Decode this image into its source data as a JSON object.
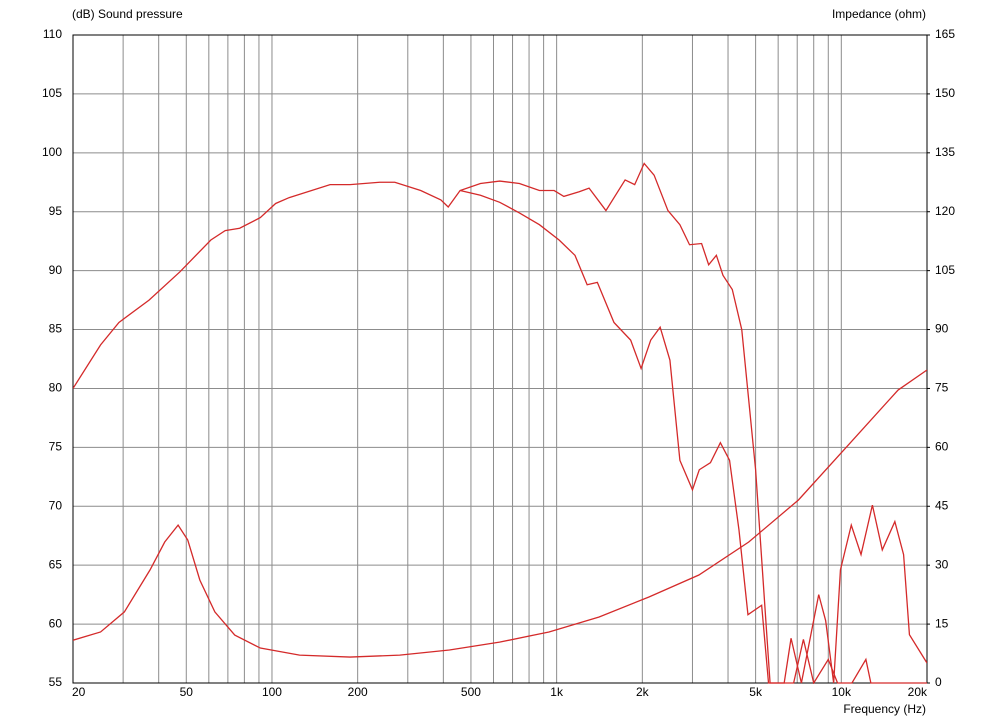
{
  "chart_data": {
    "type": "line",
    "y_label": "(dB)  Sound pressure",
    "y2_label": "Impedance  (ohm)",
    "x_label": "Frequency  (Hz)",
    "x_scale": "log",
    "grid": true,
    "xlim": [
      20,
      20000
    ],
    "xticks": [
      20,
      50,
      100,
      200,
      500,
      {
        "value": 1000,
        "label": "1k"
      },
      {
        "value": 2000,
        "label": "2k"
      },
      {
        "value": 5000,
        "label": "5k"
      },
      {
        "value": 10000,
        "label": "10k"
      },
      {
        "value": 20000,
        "label": "20k"
      }
    ],
    "xminor": [
      30,
      40,
      60,
      70,
      80,
      90,
      300,
      400,
      600,
      700,
      800,
      900,
      3000,
      4000,
      6000,
      7000,
      8000,
      9000
    ],
    "ylim": [
      55,
      110
    ],
    "yticks": [
      55,
      60,
      65,
      70,
      75,
      80,
      85,
      90,
      95,
      100,
      105,
      110
    ],
    "y2lim": [
      0,
      165
    ],
    "y2ticks": [
      0,
      15,
      30,
      45,
      60,
      75,
      90,
      105,
      120,
      135,
      150,
      165
    ],
    "series": [
      {
        "color": "#d42a2a",
        "x": [
          20,
          25,
          29,
          37,
          47.5,
          61,
          68.5,
          77,
          91,
          103,
          115,
          160,
          188,
          239,
          270,
          333,
          392,
          416,
          458,
          540,
          631,
          740,
          870,
          980,
          1060,
          1200,
          1300,
          1490,
          1740,
          1880,
          2030,
          2200,
          2460,
          2710,
          2930,
          3230,
          3420,
          3640,
          3840,
          4140,
          4470,
          5000,
          5620,
          6800,
          7360,
          8000,
          9000,
          9700,
          10900,
          12200,
          12700,
          20000
        ],
        "values": [
          80.0,
          83.7,
          85.6,
          87.5,
          89.9,
          92.6,
          93.4,
          93.6,
          94.5,
          95.7,
          96.2,
          97.3,
          97.3,
          97.5,
          97.5,
          96.8,
          96.0,
          95.4,
          96.8,
          97.4,
          97.6,
          97.4,
          96.8,
          96.8,
          96.3,
          96.7,
          97.0,
          95.1,
          97.7,
          97.3,
          99.1,
          98.1,
          95.1,
          93.9,
          92.2,
          92.3,
          90.5,
          91.3,
          89.6,
          88.4,
          85.0,
          73.1,
          55,
          55,
          58.7,
          55,
          57,
          55,
          55,
          57,
          55,
          55
        ]
      },
      {
        "color": "#d42a2a",
        "x": [
          458,
          540,
          631,
          740,
          870,
          1020,
          1160,
          1280,
          1390,
          1590,
          1820,
          1980,
          2140,
          2310,
          2500,
          2710,
          3000,
          3170,
          3470,
          3760,
          4050,
          4370,
          4700,
          5250,
          5550,
          6300,
          6660,
          7240,
          8330,
          8810,
          9400,
          9930,
          10840,
          11730,
          12860,
          13930,
          15420,
          16550,
          17350,
          20000
        ],
        "values": [
          96.8,
          96.4,
          95.8,
          94.9,
          93.9,
          92.6,
          91.3,
          88.8,
          89.0,
          85.6,
          84.1,
          81.7,
          84.1,
          85.2,
          82.4,
          73.9,
          71.4,
          73.1,
          73.7,
          75.4,
          73.9,
          68.0,
          60.8,
          61.6,
          55,
          55,
          58.8,
          55,
          62.5,
          60.3,
          55,
          64.6,
          68.4,
          65.9,
          70.1,
          66.3,
          68.7,
          65.9,
          59.1,
          56.7
        ]
      },
      {
        "color": "#d42a2a",
        "axis": "y2",
        "x": [
          20,
          25,
          30.3,
          37.3,
          42,
          46.8,
          50.6,
          55.8,
          63,
          74,
          91,
          125,
          188,
          281,
          420,
          630,
          940,
          1410,
          2110,
          3160,
          4730,
          7070,
          10580,
          15830,
          20000
        ],
        "values": [
          10.9,
          13.0,
          18.1,
          28.8,
          35.9,
          40.2,
          36.4,
          26.2,
          18.1,
          12.2,
          8.9,
          7.1,
          6.6,
          7.1,
          8.4,
          10.4,
          13.0,
          16.8,
          21.9,
          27.5,
          35.9,
          46.6,
          60.6,
          74.6,
          79.7
        ]
      }
    ]
  }
}
